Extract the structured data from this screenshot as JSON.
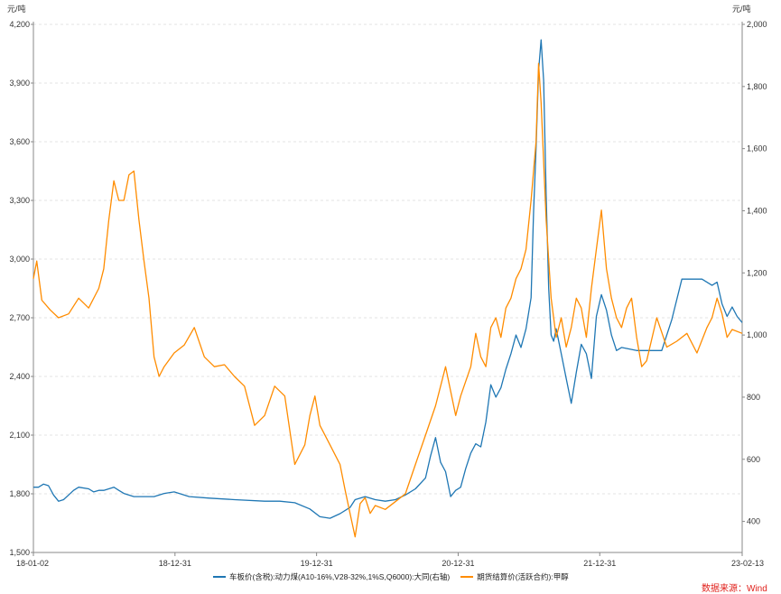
{
  "chart_data": {
    "type": "line",
    "left_unit": "元/吨",
    "right_unit": "元/吨",
    "left_axis": {
      "ylim": [
        1500,
        4200
      ],
      "ticks": [
        "1,500",
        "1,800",
        "2,100",
        "2,400",
        "2,700",
        "3,000",
        "3,300",
        "3,600",
        "3,900",
        "4,200"
      ]
    },
    "right_axis": {
      "ylim": [
        300,
        2000
      ],
      "ticks": [
        "400",
        "600",
        "800",
        "1,000",
        "1,200",
        "1,400",
        "1,600",
        "1,800",
        "2,000"
      ]
    },
    "x_ticks": [
      "18-01-02",
      "18-12-31",
      "19-12-31",
      "20-12-31",
      "21-12-31",
      "23-02-13"
    ],
    "grid": "horizontal dashed",
    "series": [
      {
        "name": "车板价(含税):动力煤(A10-16%,V28-32%,1%S,Q6000):大同(右轴)",
        "axis": "right",
        "color": "#1f77b4",
        "points": [
          [
            0.0,
            510
          ],
          [
            0.6,
            510
          ],
          [
            1.2,
            520
          ],
          [
            1.8,
            515
          ],
          [
            2.4,
            485
          ],
          [
            3.0,
            465
          ],
          [
            3.6,
            470
          ],
          [
            4.2,
            485
          ],
          [
            4.8,
            500
          ],
          [
            5.4,
            510
          ],
          [
            6.6,
            505
          ],
          [
            7.2,
            495
          ],
          [
            7.8,
            500
          ],
          [
            8.4,
            500
          ],
          [
            9.0,
            505
          ],
          [
            9.6,
            510
          ],
          [
            10.2,
            500
          ],
          [
            10.8,
            490
          ],
          [
            12.0,
            480
          ],
          [
            14.4,
            480
          ],
          [
            15.6,
            490
          ],
          [
            16.8,
            495
          ],
          [
            17.4,
            490
          ],
          [
            18.6,
            480
          ],
          [
            21.0,
            475
          ],
          [
            24.0,
            470
          ],
          [
            27.6,
            465
          ],
          [
            29.4,
            465
          ],
          [
            31.2,
            460
          ],
          [
            33.0,
            440
          ],
          [
            34.2,
            415
          ],
          [
            35.4,
            410
          ],
          [
            36.6,
            425
          ],
          [
            37.8,
            445
          ],
          [
            38.4,
            470
          ],
          [
            39.6,
            480
          ],
          [
            40.8,
            470
          ],
          [
            42.0,
            465
          ],
          [
            43.2,
            470
          ],
          [
            44.4,
            485
          ],
          [
            45.6,
            505
          ],
          [
            46.8,
            540
          ],
          [
            47.4,
            610
          ],
          [
            48.0,
            670
          ],
          [
            48.6,
            590
          ],
          [
            49.2,
            560
          ],
          [
            49.8,
            480
          ],
          [
            50.4,
            500
          ],
          [
            51.0,
            510
          ],
          [
            51.6,
            570
          ],
          [
            52.2,
            620
          ],
          [
            52.8,
            650
          ],
          [
            53.4,
            640
          ],
          [
            54.0,
            720
          ],
          [
            54.6,
            840
          ],
          [
            55.2,
            800
          ],
          [
            55.8,
            830
          ],
          [
            56.4,
            890
          ],
          [
            57.0,
            940
          ],
          [
            57.6,
            1000
          ],
          [
            58.2,
            960
          ],
          [
            58.8,
            1020
          ],
          [
            59.4,
            1120
          ],
          [
            59.7,
            1400
          ],
          [
            60.0,
            1600
          ],
          [
            60.3,
            1850
          ],
          [
            60.6,
            1950
          ],
          [
            60.9,
            1820
          ],
          [
            61.2,
            1450
          ],
          [
            61.5,
            1150
          ],
          [
            61.8,
            1000
          ],
          [
            62.1,
            980
          ],
          [
            62.4,
            1020
          ],
          [
            63.0,
            940
          ],
          [
            63.6,
            860
          ],
          [
            64.2,
            780
          ],
          [
            64.8,
            880
          ],
          [
            65.4,
            970
          ],
          [
            66.0,
            940
          ],
          [
            66.6,
            860
          ],
          [
            67.2,
            1060
          ],
          [
            67.8,
            1130
          ],
          [
            68.4,
            1080
          ],
          [
            69.0,
            1000
          ],
          [
            69.6,
            950
          ],
          [
            70.2,
            960
          ],
          [
            72.0,
            950
          ],
          [
            75.0,
            950
          ],
          [
            76.2,
            1050
          ],
          [
            77.4,
            1180
          ],
          [
            79.8,
            1180
          ],
          [
            81.0,
            1160
          ],
          [
            81.6,
            1170
          ],
          [
            82.2,
            1100
          ],
          [
            82.8,
            1060
          ],
          [
            83.4,
            1090
          ],
          [
            84.0,
            1060
          ],
          [
            84.6,
            1040
          ]
        ]
      },
      {
        "name": "期货结算价(活跃合约):甲醇",
        "axis": "left",
        "color": "#ff8c00",
        "points": [
          [
            0.0,
            2900
          ],
          [
            0.4,
            2990
          ],
          [
            1.0,
            2790
          ],
          [
            2.0,
            2740
          ],
          [
            3.0,
            2700
          ],
          [
            4.2,
            2720
          ],
          [
            5.4,
            2800
          ],
          [
            6.6,
            2750
          ],
          [
            7.8,
            2850
          ],
          [
            8.4,
            2950
          ],
          [
            9.0,
            3200
          ],
          [
            9.6,
            3400
          ],
          [
            10.2,
            3300
          ],
          [
            10.8,
            3300
          ],
          [
            11.4,
            3430
          ],
          [
            12.0,
            3450
          ],
          [
            12.6,
            3200
          ],
          [
            13.2,
            2990
          ],
          [
            13.8,
            2800
          ],
          [
            14.4,
            2500
          ],
          [
            15.0,
            2400
          ],
          [
            15.6,
            2450
          ],
          [
            16.8,
            2520
          ],
          [
            18.0,
            2560
          ],
          [
            19.2,
            2650
          ],
          [
            20.4,
            2500
          ],
          [
            21.6,
            2450
          ],
          [
            22.8,
            2460
          ],
          [
            24.0,
            2400
          ],
          [
            25.2,
            2350
          ],
          [
            26.4,
            2150
          ],
          [
            27.6,
            2200
          ],
          [
            28.8,
            2350
          ],
          [
            30.0,
            2300
          ],
          [
            31.2,
            1950
          ],
          [
            32.4,
            2050
          ],
          [
            33.0,
            2200
          ],
          [
            33.6,
            2300
          ],
          [
            34.2,
            2150
          ],
          [
            35.4,
            2050
          ],
          [
            36.6,
            1950
          ],
          [
            37.2,
            1820
          ],
          [
            37.8,
            1700
          ],
          [
            38.4,
            1580
          ],
          [
            39.0,
            1750
          ],
          [
            39.6,
            1780
          ],
          [
            40.2,
            1700
          ],
          [
            40.8,
            1740
          ],
          [
            42.0,
            1720
          ],
          [
            43.2,
            1760
          ],
          [
            44.4,
            1800
          ],
          [
            45.6,
            1950
          ],
          [
            46.8,
            2100
          ],
          [
            48.0,
            2250
          ],
          [
            49.2,
            2450
          ],
          [
            50.4,
            2200
          ],
          [
            51.0,
            2300
          ],
          [
            52.2,
            2450
          ],
          [
            52.8,
            2620
          ],
          [
            53.4,
            2500
          ],
          [
            54.0,
            2450
          ],
          [
            54.6,
            2650
          ],
          [
            55.2,
            2700
          ],
          [
            55.8,
            2600
          ],
          [
            56.4,
            2750
          ],
          [
            57.0,
            2800
          ],
          [
            57.6,
            2900
          ],
          [
            58.2,
            2950
          ],
          [
            58.8,
            3050
          ],
          [
            59.4,
            3300
          ],
          [
            60.0,
            3600
          ],
          [
            60.3,
            4000
          ],
          [
            60.6,
            3800
          ],
          [
            61.2,
            3200
          ],
          [
            61.8,
            2800
          ],
          [
            62.4,
            2600
          ],
          [
            63.0,
            2700
          ],
          [
            63.6,
            2550
          ],
          [
            64.2,
            2650
          ],
          [
            64.8,
            2800
          ],
          [
            65.4,
            2750
          ],
          [
            66.0,
            2600
          ],
          [
            66.6,
            2850
          ],
          [
            67.2,
            3050
          ],
          [
            67.8,
            3250
          ],
          [
            68.4,
            2950
          ],
          [
            69.0,
            2800
          ],
          [
            69.6,
            2700
          ],
          [
            70.2,
            2650
          ],
          [
            70.8,
            2750
          ],
          [
            71.4,
            2800
          ],
          [
            72.0,
            2600
          ],
          [
            72.6,
            2450
          ],
          [
            73.2,
            2480
          ],
          [
            74.4,
            2700
          ],
          [
            75.6,
            2550
          ],
          [
            76.8,
            2580
          ],
          [
            78.0,
            2620
          ],
          [
            79.2,
            2520
          ],
          [
            80.4,
            2650
          ],
          [
            81.0,
            2700
          ],
          [
            81.6,
            2800
          ],
          [
            82.2,
            2720
          ],
          [
            82.8,
            2600
          ],
          [
            83.4,
            2640
          ],
          [
            84.6,
            2620
          ]
        ]
      }
    ]
  },
  "legend": [
    {
      "label": "车板价(含税):动力煤(A10-16%,V28-32%,1%S,Q6000):大同(右轴)",
      "color": "#1f77b4"
    },
    {
      "label": "期货结算价(活跃合约):甲醇",
      "color": "#ff8c00"
    }
  ],
  "source_text": "数据来源：Wind"
}
